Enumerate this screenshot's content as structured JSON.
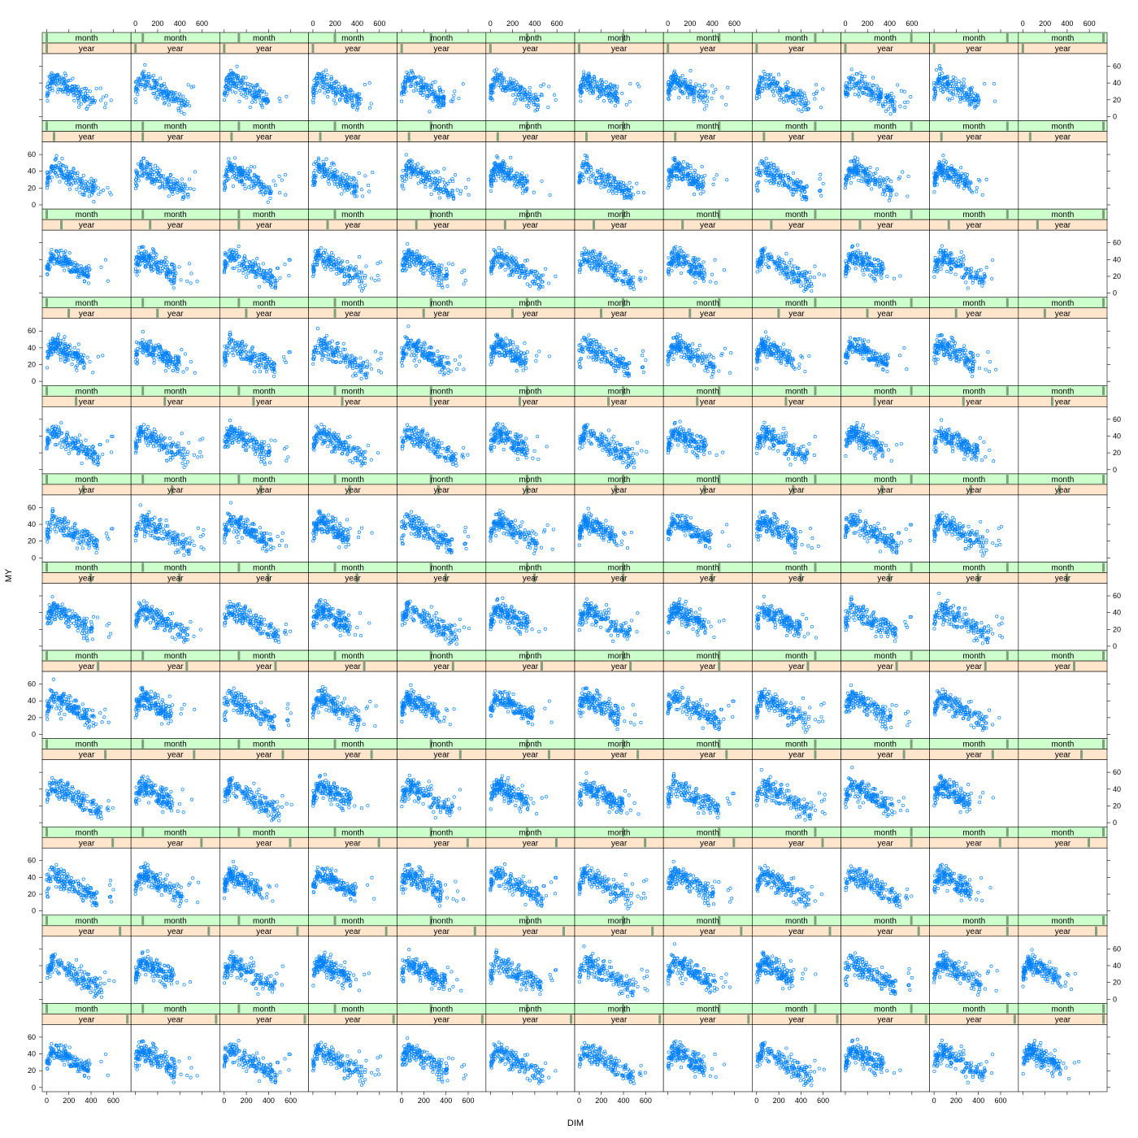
{
  "chart_data": {
    "type": "scatter",
    "xlabel": "DIM",
    "ylabel": "MY",
    "strip_labels": {
      "outer": "month",
      "inner": "year"
    },
    "layout": {
      "columns": 12,
      "rows": 12
    },
    "xlim": [
      -40,
      760
    ],
    "ylim": [
      -5,
      75
    ],
    "x_ticks": [
      0,
      200,
      400,
      600
    ],
    "y_ticks": [
      0,
      20,
      40,
      60
    ],
    "x_tick_labels": [
      "0",
      "200",
      "400",
      "600"
    ],
    "y_tick_labels": [
      "0",
      "20",
      "40",
      "60"
    ],
    "point_color": "#0080ff",
    "strip_colors": {
      "month": "#ccffcc",
      "year": "#ffe5cc",
      "indicator": "#7f9f7f"
    },
    "grid": false,
    "legend": "none",
    "panel_pattern": {
      "description": "Each panel: milk yield (MY) vs days in milk (DIM) lactation scatter",
      "peak_dim": [
        40,
        90
      ],
      "peak_my": [
        40,
        55
      ],
      "late_dim": [
        350,
        450
      ],
      "late_my": [
        10,
        25
      ],
      "outlier_max_dim": 700,
      "outlier_max_my": 72
    },
    "empty_panels": [
      [
        0,
        11
      ],
      [
        1,
        11
      ],
      [
        2,
        11
      ],
      [
        3,
        11
      ],
      [
        4,
        11
      ],
      [
        5,
        11
      ],
      [
        6,
        11
      ],
      [
        7,
        11
      ],
      [
        8,
        11
      ],
      [
        9,
        11
      ]
    ]
  }
}
